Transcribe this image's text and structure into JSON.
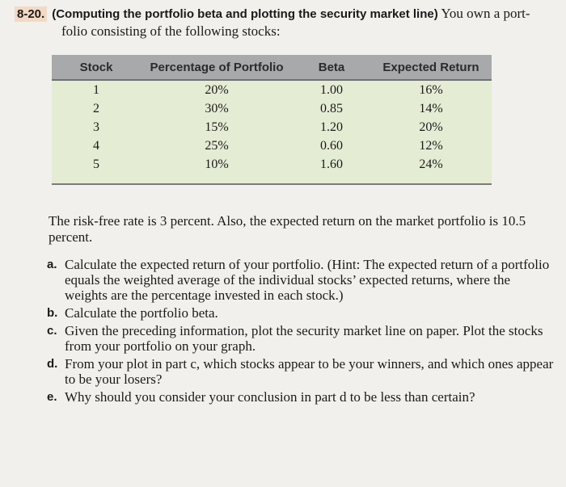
{
  "problem": {
    "number": "8-20.",
    "title": "(Computing the portfolio beta and plotting the security market line)",
    "intro_line1": "You own a port-",
    "intro_line2": "folio consisting of the following stocks:"
  },
  "table": {
    "headers": [
      "Stock",
      "Percentage of Portfolio",
      "Beta",
      "Expected Return"
    ],
    "rows": [
      [
        "1",
        "20%",
        "1.00",
        "16%"
      ],
      [
        "2",
        "30%",
        "0.85",
        "14%"
      ],
      [
        "3",
        "15%",
        "1.20",
        "20%"
      ],
      [
        "4",
        "25%",
        "0.60",
        "12%"
      ],
      [
        "5",
        "10%",
        "1.60",
        "24%"
      ]
    ]
  },
  "intro_text": "The risk-free rate is 3 percent. Also, the expected return on the market portfolio is 10.5 percent.",
  "questions": [
    {
      "label": "a.",
      "text": "Calculate the expected return of your portfolio. (Hint: The expected return of a portfolio equals the weighted average of the individual stocks’ expected returns, where the weights are the percentage invested in each stock.)"
    },
    {
      "label": "b.",
      "text": "Calculate the portfolio beta."
    },
    {
      "label": "c.",
      "text": "Given the preceding information, plot the security market line on paper. Plot the stocks from your portfolio on your graph."
    },
    {
      "label": "d.",
      "text": "From your plot in part c, which stocks appear to be your winners, and which ones appear to be your losers?"
    },
    {
      "label": "e.",
      "text": "Why should you consider your conclusion in part d to be less than certain?"
    }
  ]
}
